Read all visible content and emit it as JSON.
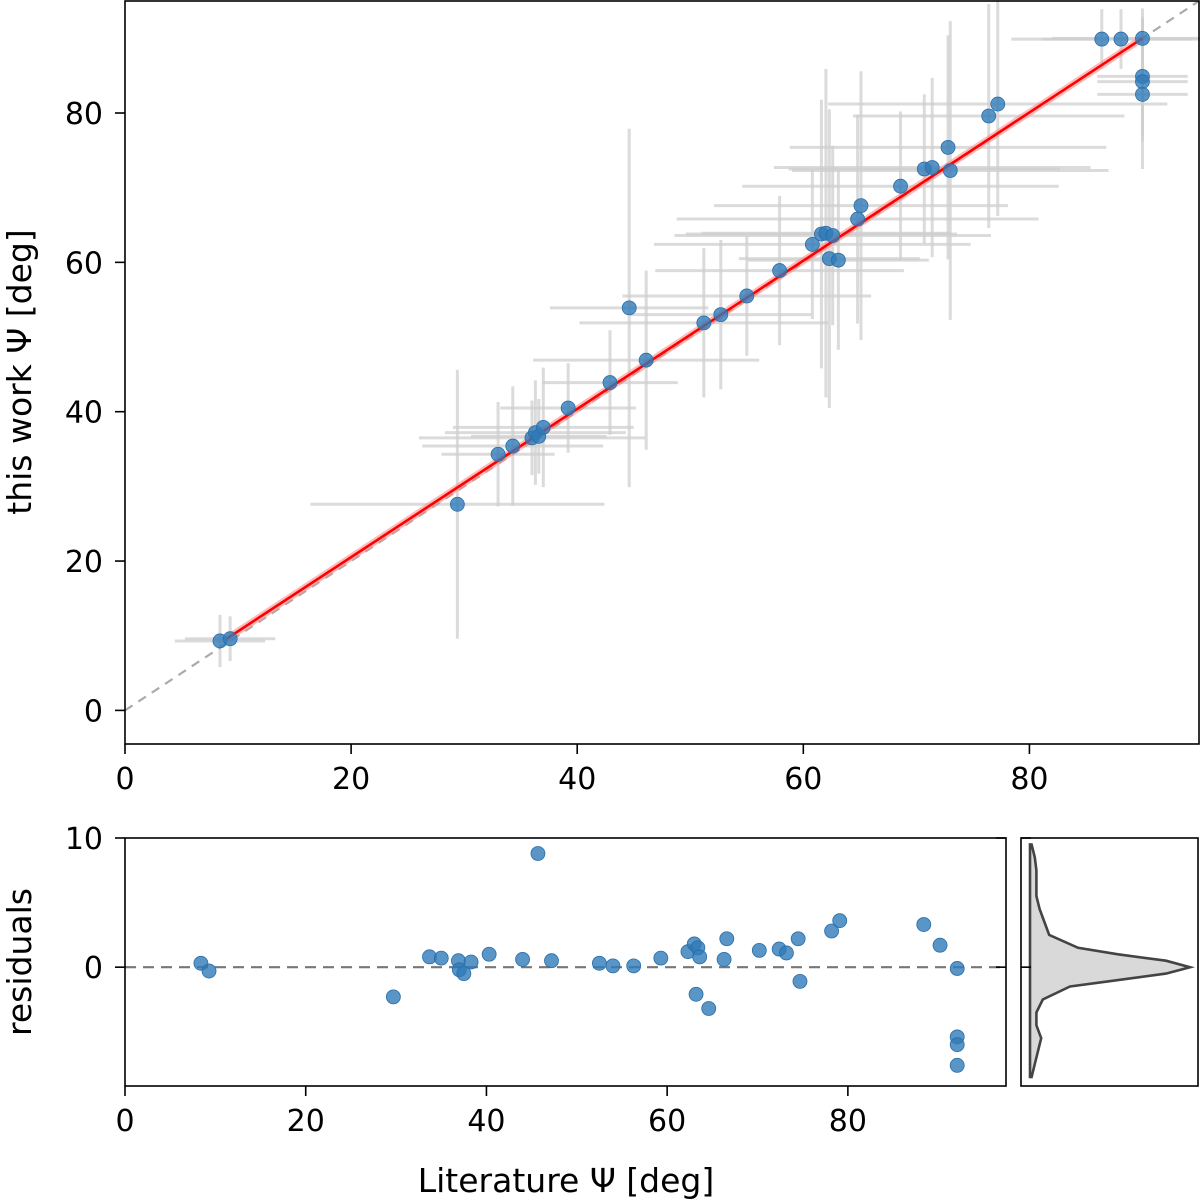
{
  "chart_data": [
    {
      "type": "scatter",
      "name": "main",
      "xlabel": "",
      "ylabel": "this work Ψ [deg]",
      "xlim": [
        0,
        95
      ],
      "ylim": [
        -4.5,
        95
      ],
      "xticks": [
        0,
        20,
        40,
        60,
        80
      ],
      "yticks": [
        0,
        20,
        40,
        60,
        80
      ],
      "xtick_labels": [
        "0",
        "20",
        "40",
        "60",
        "80"
      ],
      "ytick_labels": [
        "0",
        "20",
        "40",
        "60",
        "80"
      ],
      "identity_line": {
        "from": [
          0,
          0
        ],
        "to": [
          95,
          95
        ],
        "style": "dashed",
        "color": "#aaaaaa"
      },
      "fit_line": {
        "from": [
          9,
          9.6
        ],
        "to": [
          90,
          90
        ],
        "color": "#ff0000"
      },
      "point_color": "#2f7ab8",
      "errorbar_color": "#cfcfcf",
      "points": [
        {
          "x": 8.4,
          "y": 9.3,
          "xerr": 4,
          "yerr": 3.5
        },
        {
          "x": 9.3,
          "y": 9.6,
          "xerr": 4,
          "yerr": 3
        },
        {
          "x": 29.4,
          "y": 27.6,
          "xerr": 13,
          "yerr": 18
        },
        {
          "x": 33.0,
          "y": 34.3,
          "xerr": 5,
          "yerr": 7
        },
        {
          "x": 34.3,
          "y": 35.4,
          "xerr": 8,
          "yerr": 8
        },
        {
          "x": 36.0,
          "y": 36.5,
          "xerr": 10,
          "yerr": 5
        },
        {
          "x": 36.3,
          "y": 37.2,
          "xerr": 8,
          "yerr": 7
        },
        {
          "x": 36.6,
          "y": 36.7,
          "xerr": 6,
          "yerr": 5
        },
        {
          "x": 37.0,
          "y": 37.9,
          "xerr": 8,
          "yerr": 8
        },
        {
          "x": 39.2,
          "y": 40.5,
          "xerr": 6,
          "yerr": 6
        },
        {
          "x": 42.9,
          "y": 43.9,
          "xerr": 6,
          "yerr": 7
        },
        {
          "x": 44.6,
          "y": 53.9,
          "xerr": 7,
          "yerr": 24
        },
        {
          "x": 46.1,
          "y": 46.9,
          "xerr": 10,
          "yerr": 12
        },
        {
          "x": 51.2,
          "y": 51.9,
          "xerr": 11,
          "yerr": 10
        },
        {
          "x": 52.7,
          "y": 53.0,
          "xerr": 8,
          "yerr": 10
        },
        {
          "x": 55.0,
          "y": 55.5,
          "xerr": 11,
          "yerr": 8
        },
        {
          "x": 57.9,
          "y": 58.9,
          "xerr": 11,
          "yerr": 10
        },
        {
          "x": 60.8,
          "y": 62.4,
          "xerr": 14,
          "yerr": 10
        },
        {
          "x": 61.6,
          "y": 63.8,
          "xerr": 12,
          "yerr": 18
        },
        {
          "x": 62.0,
          "y": 63.9,
          "xerr": 11,
          "yerr": 22
        },
        {
          "x": 62.3,
          "y": 60.5,
          "xerr": 8,
          "yerr": 20
        },
        {
          "x": 62.6,
          "y": 63.6,
          "xerr": 14,
          "yerr": 12
        },
        {
          "x": 63.1,
          "y": 60.3,
          "xerr": 8,
          "yerr": 12
        },
        {
          "x": 64.8,
          "y": 65.8,
          "xerr": 16,
          "yerr": 14
        },
        {
          "x": 65.1,
          "y": 67.6,
          "xerr": 13,
          "yerr": 18
        },
        {
          "x": 68.6,
          "y": 70.2,
          "xerr": 14,
          "yerr": 10
        },
        {
          "x": 70.7,
          "y": 72.5,
          "xerr": 12,
          "yerr": 10
        },
        {
          "x": 71.4,
          "y": 72.7,
          "xerr": 14,
          "yerr": 12
        },
        {
          "x": 72.8,
          "y": 75.4,
          "xerr": 14,
          "yerr": 15
        },
        {
          "x": 73.0,
          "y": 72.3,
          "xerr": 14,
          "yerr": 20
        },
        {
          "x": 76.4,
          "y": 79.6,
          "xerr": 12,
          "yerr": 15
        },
        {
          "x": 77.2,
          "y": 81.2,
          "xerr": 15,
          "yerr": 15
        },
        {
          "x": 86.4,
          "y": 89.9,
          "xerr": 8,
          "yerr": 4
        },
        {
          "x": 88.1,
          "y": 89.9,
          "xerr": 7,
          "yerr": 4
        },
        {
          "x": 90.0,
          "y": 90.0,
          "xerr": 8,
          "yerr": 4
        },
        {
          "x": 90.0,
          "y": 84.9,
          "xerr": 4,
          "yerr": 8
        },
        {
          "x": 90.0,
          "y": 84.2,
          "xerr": 4,
          "yerr": 8
        },
        {
          "x": 90.0,
          "y": 82.5,
          "xerr": 4,
          "yerr": 10
        }
      ]
    },
    {
      "type": "scatter",
      "name": "residuals",
      "xlabel": "Literature Ψ [deg]",
      "ylabel": "residuals",
      "xlim": [
        0,
        97.5
      ],
      "ylim": [
        -9.2,
        10.0
      ],
      "xticks": [
        0,
        20,
        40,
        60,
        80
      ],
      "yticks": [
        0,
        10
      ],
      "xtick_labels": [
        "0",
        "20",
        "40",
        "60",
        "80"
      ],
      "ytick_labels": [
        "0",
        "10"
      ],
      "zero_line": {
        "y": 0,
        "style": "dashed",
        "color": "#777777"
      },
      "points": [
        {
          "x": 8.4,
          "y": 0.3
        },
        {
          "x": 9.3,
          "y": -0.3
        },
        {
          "x": 29.7,
          "y": -2.3
        },
        {
          "x": 33.7,
          "y": 0.8
        },
        {
          "x": 35.0,
          "y": 0.7
        },
        {
          "x": 36.9,
          "y": 0.5
        },
        {
          "x": 37.0,
          "y": -0.2
        },
        {
          "x": 37.5,
          "y": -0.5
        },
        {
          "x": 38.3,
          "y": 0.4
        },
        {
          "x": 40.3,
          "y": 1.0
        },
        {
          "x": 44.0,
          "y": 0.6
        },
        {
          "x": 45.7,
          "y": 8.8
        },
        {
          "x": 47.2,
          "y": 0.5
        },
        {
          "x": 52.5,
          "y": 0.3
        },
        {
          "x": 54.0,
          "y": 0.1
        },
        {
          "x": 56.3,
          "y": 0.1
        },
        {
          "x": 59.3,
          "y": 0.7
        },
        {
          "x": 62.3,
          "y": 1.2
        },
        {
          "x": 63.0,
          "y": 1.8
        },
        {
          "x": 63.4,
          "y": 1.5
        },
        {
          "x": 63.2,
          "y": -2.1
        },
        {
          "x": 63.6,
          "y": 0.8
        },
        {
          "x": 64.6,
          "y": -3.2
        },
        {
          "x": 66.3,
          "y": 0.6
        },
        {
          "x": 66.6,
          "y": 2.2
        },
        {
          "x": 70.2,
          "y": 1.3
        },
        {
          "x": 72.4,
          "y": 1.4
        },
        {
          "x": 73.2,
          "y": 1.1
        },
        {
          "x": 74.5,
          "y": 2.2
        },
        {
          "x": 74.7,
          "y": -1.1
        },
        {
          "x": 78.2,
          "y": 2.8
        },
        {
          "x": 79.1,
          "y": 3.6
        },
        {
          "x": 88.4,
          "y": 3.3
        },
        {
          "x": 90.2,
          "y": 1.7
        },
        {
          "x": 92.1,
          "y": -0.1
        },
        {
          "x": 92.1,
          "y": -5.4
        },
        {
          "x": 92.1,
          "y": -6.0
        },
        {
          "x": 92.1,
          "y": -7.6
        }
      ]
    },
    {
      "type": "area",
      "name": "residual-density",
      "orientation": "horizontal",
      "ylim": [
        -9.2,
        10.0
      ],
      "fill_color": "#d9d9d9",
      "line_color": "#444444",
      "y": [
        -8.5,
        -7.5,
        -6.5,
        -5.5,
        -4.5,
        -3.5,
        -2.5,
        -1.5,
        -1.0,
        -0.5,
        0.0,
        0.5,
        1.0,
        1.5,
        2.5,
        3.5,
        4.5,
        5.5,
        6.5,
        7.5,
        8.5,
        9.5
      ],
      "density": [
        0.01,
        0.03,
        0.05,
        0.07,
        0.04,
        0.04,
        0.08,
        0.25,
        0.55,
        0.85,
        1.0,
        0.85,
        0.55,
        0.3,
        0.12,
        0.09,
        0.06,
        0.04,
        0.04,
        0.04,
        0.03,
        0.01
      ]
    }
  ]
}
